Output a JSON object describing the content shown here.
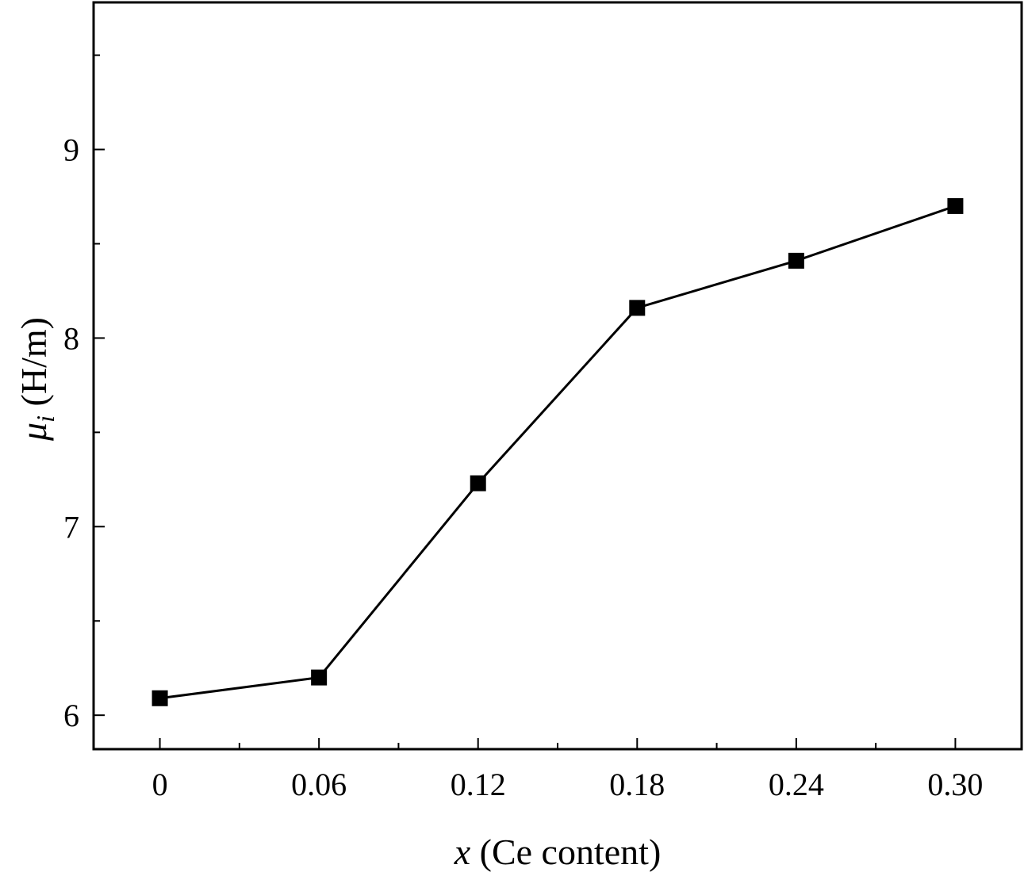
{
  "chart_data": {
    "type": "line",
    "x_ticks": [
      "0",
      "0.06",
      "0.12",
      "0.18",
      "0.24",
      "0.30"
    ],
    "x_tick_values": [
      0,
      0.06,
      0.12,
      0.18,
      0.24,
      0.3
    ],
    "y_ticks": [
      "6",
      "7",
      "8",
      "9"
    ],
    "y_tick_values": [
      6,
      7,
      8,
      9
    ],
    "xlim": [
      -0.025,
      0.325
    ],
    "ylim": [
      5.82,
      9.78
    ],
    "x_minor_step": 0.03,
    "y_minor_step": 0.5,
    "xlabel": {
      "var": "x",
      "rest": " (Ce content)"
    },
    "ylabel": {
      "var": "μ",
      "sub": "i",
      "rest": " (H/m)"
    },
    "series": [
      {
        "x": [
          0,
          0.06,
          0.12,
          0.18,
          0.24,
          0.3
        ],
        "y": [
          6.09,
          6.2,
          7.23,
          8.16,
          8.41,
          8.7
        ],
        "marker": "square",
        "color": "#000000"
      }
    ],
    "grid": false,
    "legend": "none"
  }
}
